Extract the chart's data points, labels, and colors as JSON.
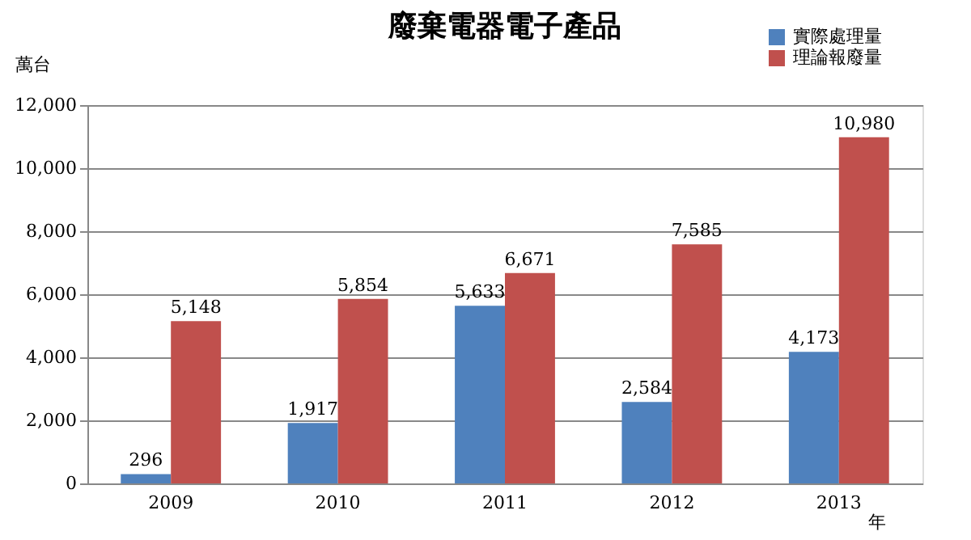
{
  "chart_data": {
    "type": "bar",
    "title": "廢棄電器電子產品",
    "xlabel": "年",
    "ylabel": "萬台",
    "categories": [
      "2009",
      "2010",
      "2011",
      "2012",
      "2013"
    ],
    "series": [
      {
        "name": "實際處理量",
        "color": "#4f81bd",
        "values": [
          296,
          1917,
          5633,
          2584,
          4173
        ],
        "value_labels": [
          "296",
          "1,917",
          "5,633",
          "2,584",
          "4,173"
        ]
      },
      {
        "name": "理論報廢量",
        "color": "#c0504d",
        "values": [
          5148,
          5854,
          6671,
          7585,
          10980
        ],
        "value_labels": [
          "5,148",
          "5,854",
          "6,671",
          "7,585",
          "10,980"
        ]
      }
    ],
    "ylim": [
      0,
      12000
    ],
    "yticks": [
      0,
      {
        "value": 2000,
        "label": "2,000"
      },
      {
        "value": 4000,
        "label": "4,000"
      },
      {
        "value": 6000,
        "label": "6,000"
      },
      {
        "value": 8000,
        "label": "8,000"
      },
      {
        "value": 10000,
        "label": "10,000"
      },
      {
        "value": 12000,
        "label": "12,000"
      }
    ],
    "grid": "y",
    "legend": "top right"
  }
}
